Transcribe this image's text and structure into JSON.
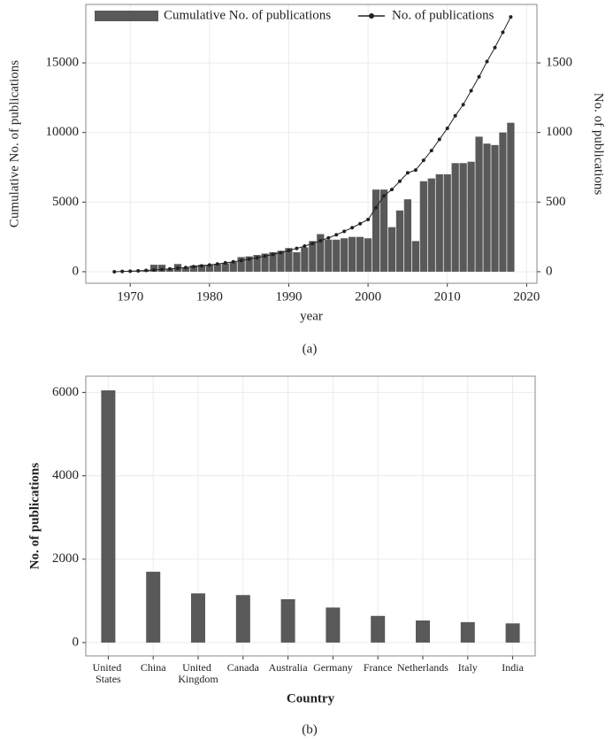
{
  "chart_data": [
    {
      "type": "bar",
      "x": [
        1968,
        1969,
        1970,
        1971,
        1972,
        1973,
        1974,
        1975,
        1976,
        1977,
        1978,
        1979,
        1980,
        1981,
        1982,
        1983,
        1984,
        1985,
        1986,
        1987,
        1988,
        1989,
        1990,
        1991,
        1992,
        1993,
        1994,
        1995,
        1996,
        1997,
        1998,
        1999,
        2000,
        2001,
        2002,
        2003,
        2004,
        2005,
        2006,
        2007,
        2008,
        2009,
        2010,
        2011,
        2012,
        2013,
        2014,
        2015,
        2016,
        2017,
        2018
      ],
      "series": [
        {
          "name": "Cumulative No. of publications",
          "type": "bar",
          "color": "#595959",
          "values": [
            0,
            30,
            50,
            50,
            100,
            500,
            500,
            200,
            550,
            300,
            450,
            500,
            500,
            550,
            600,
            700,
            1050,
            1100,
            1200,
            1300,
            1400,
            1500,
            1700,
            1400,
            1750,
            2200,
            2700,
            2300,
            2300,
            2400,
            2500,
            2500,
            2400,
            5900,
            5900,
            3200,
            4400,
            5200,
            2200,
            6500,
            6700,
            7000,
            7000,
            7800,
            7800,
            7900,
            9700,
            9200,
            9100,
            10000,
            10700
          ]
        },
        {
          "name": "No. of publications",
          "type": "line",
          "axis": "y2",
          "color": "#222222",
          "values": [
            0,
            2,
            4,
            6,
            9,
            12,
            16,
            20,
            25,
            30,
            36,
            42,
            48,
            55,
            63,
            71,
            80,
            90,
            100,
            112,
            124,
            137,
            152,
            167,
            184,
            202,
            222,
            243,
            265,
            290,
            316,
            345,
            375,
            460,
            545,
            590,
            650,
            710,
            730,
            800,
            870,
            950,
            1030,
            1120,
            1200,
            1300,
            1400,
            1510,
            1610,
            1720,
            1830
          ]
        }
      ],
      "xlabel": "year",
      "ylabel": "Cumulative No. of publications",
      "y2label": "No. of publications",
      "caption": "(a)",
      "xlim": [
        1964.4,
        2021.3
      ],
      "xticks": [
        1970,
        1980,
        1990,
        2000,
        2010,
        2020
      ],
      "ylim": [
        -830,
        19200
      ],
      "yticks": [
        0,
        5000,
        10000,
        15000
      ],
      "y2lim": [
        -83,
        1920
      ],
      "y2ticks": [
        0,
        500,
        1000,
        1500
      ],
      "grid": true,
      "legend": "top"
    },
    {
      "type": "bar",
      "categories": [
        "United States",
        "China",
        "United Kingdom",
        "Canada",
        "Australia",
        "Germany",
        "France",
        "Netherlands",
        "Italy",
        "India"
      ],
      "values": [
        6050,
        1700,
        1180,
        1140,
        1040,
        840,
        640,
        530,
        490,
        460
      ],
      "color": "#595959",
      "xlabel": "Country",
      "ylabel": "No. of publications",
      "caption": "(b)",
      "ylim": [
        -320,
        6390
      ],
      "yticks": [
        0,
        2000,
        4000,
        6000
      ],
      "grid": true
    }
  ]
}
